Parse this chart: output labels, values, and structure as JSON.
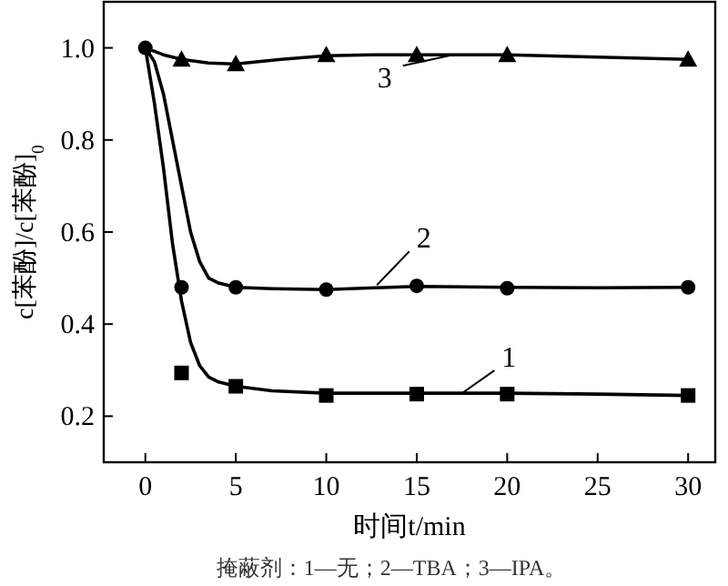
{
  "chart_data": {
    "type": "line",
    "xlabel": "时间t/min",
    "ylabel": "c[苯酚]/c[苯酚]$_{0}$",
    "xlim": [
      -2.3,
      31.5
    ],
    "ylim": [
      0.1,
      1.1
    ],
    "xticks": [
      0,
      5,
      10,
      15,
      20,
      25,
      30
    ],
    "yticks": [
      {
        "value": 0.2,
        "label": "0.2"
      },
      {
        "value": 0.4,
        "label": "0.4"
      },
      {
        "value": 0.6,
        "label": "0.6"
      },
      {
        "value": 0.8,
        "label": "0.8"
      },
      {
        "value": 1.0,
        "label": "1.0"
      }
    ],
    "grid": false,
    "line_style": "solid",
    "series": [
      {
        "color": "#000000",
        "marker": "none",
        "x": [
          0,
          0.5,
          1,
          1.5,
          2,
          2.5,
          3,
          3.5,
          4,
          5,
          7,
          10,
          15,
          20,
          25,
          30
        ],
        "values": [
          1.0,
          0.88,
          0.74,
          0.575,
          0.45,
          0.36,
          0.31,
          0.285,
          0.275,
          0.265,
          0.255,
          0.25,
          0.25,
          0.25,
          0.248,
          0.245
        ]
      },
      {
        "color": "#000000",
        "marker": "none",
        "x": [
          0,
          0.5,
          1,
          1.5,
          2,
          2.5,
          3,
          3.5,
          4,
          5,
          7,
          10,
          12,
          15,
          20,
          25,
          30
        ],
        "values": [
          1.0,
          0.97,
          0.9,
          0.8,
          0.7,
          0.6,
          0.536,
          0.5,
          0.49,
          0.48,
          0.477,
          0.475,
          0.478,
          0.482,
          0.48,
          0.479,
          0.48
        ]
      },
      {
        "color": "#000000",
        "marker": "none",
        "x": [
          0,
          1,
          2,
          3.5,
          5,
          7.5,
          10,
          12.5,
          15,
          20,
          25,
          30
        ],
        "values": [
          1.0,
          0.985,
          0.975,
          0.967,
          0.965,
          0.975,
          0.983,
          0.985,
          0.985,
          0.985,
          0.98,
          0.975
        ]
      },
      {
        "type": "scatter",
        "color": "#000000",
        "marker": "square",
        "x": [
          2,
          5,
          10,
          15,
          20,
          30
        ],
        "values": [
          0.294,
          0.265,
          0.245,
          0.248,
          0.248,
          0.245
        ]
      },
      {
        "type": "scatter",
        "color": "#000000",
        "marker": "circle",
        "x": [
          0,
          2,
          5,
          10,
          15,
          20,
          30
        ],
        "values": [
          1.0,
          0.48,
          0.48,
          0.475,
          0.483,
          0.478,
          0.48
        ]
      },
      {
        "type": "scatter",
        "color": "#000000",
        "marker": "triangle",
        "x": [
          2,
          5,
          10,
          15,
          20,
          30
        ],
        "values": [
          0.975,
          0.965,
          0.985,
          0.985,
          0.985,
          0.975
        ]
      }
    ],
    "annotations": [
      {
        "text": "1",
        "x": 17.5,
        "y": 0.25
      },
      {
        "text": "2",
        "x": 12.8,
        "y": 0.485
      },
      {
        "text": "3",
        "x": 17,
        "y": 0.985
      },
      "掩蔽剂：1—无；2—TBA；3—IPA。"
    ]
  }
}
